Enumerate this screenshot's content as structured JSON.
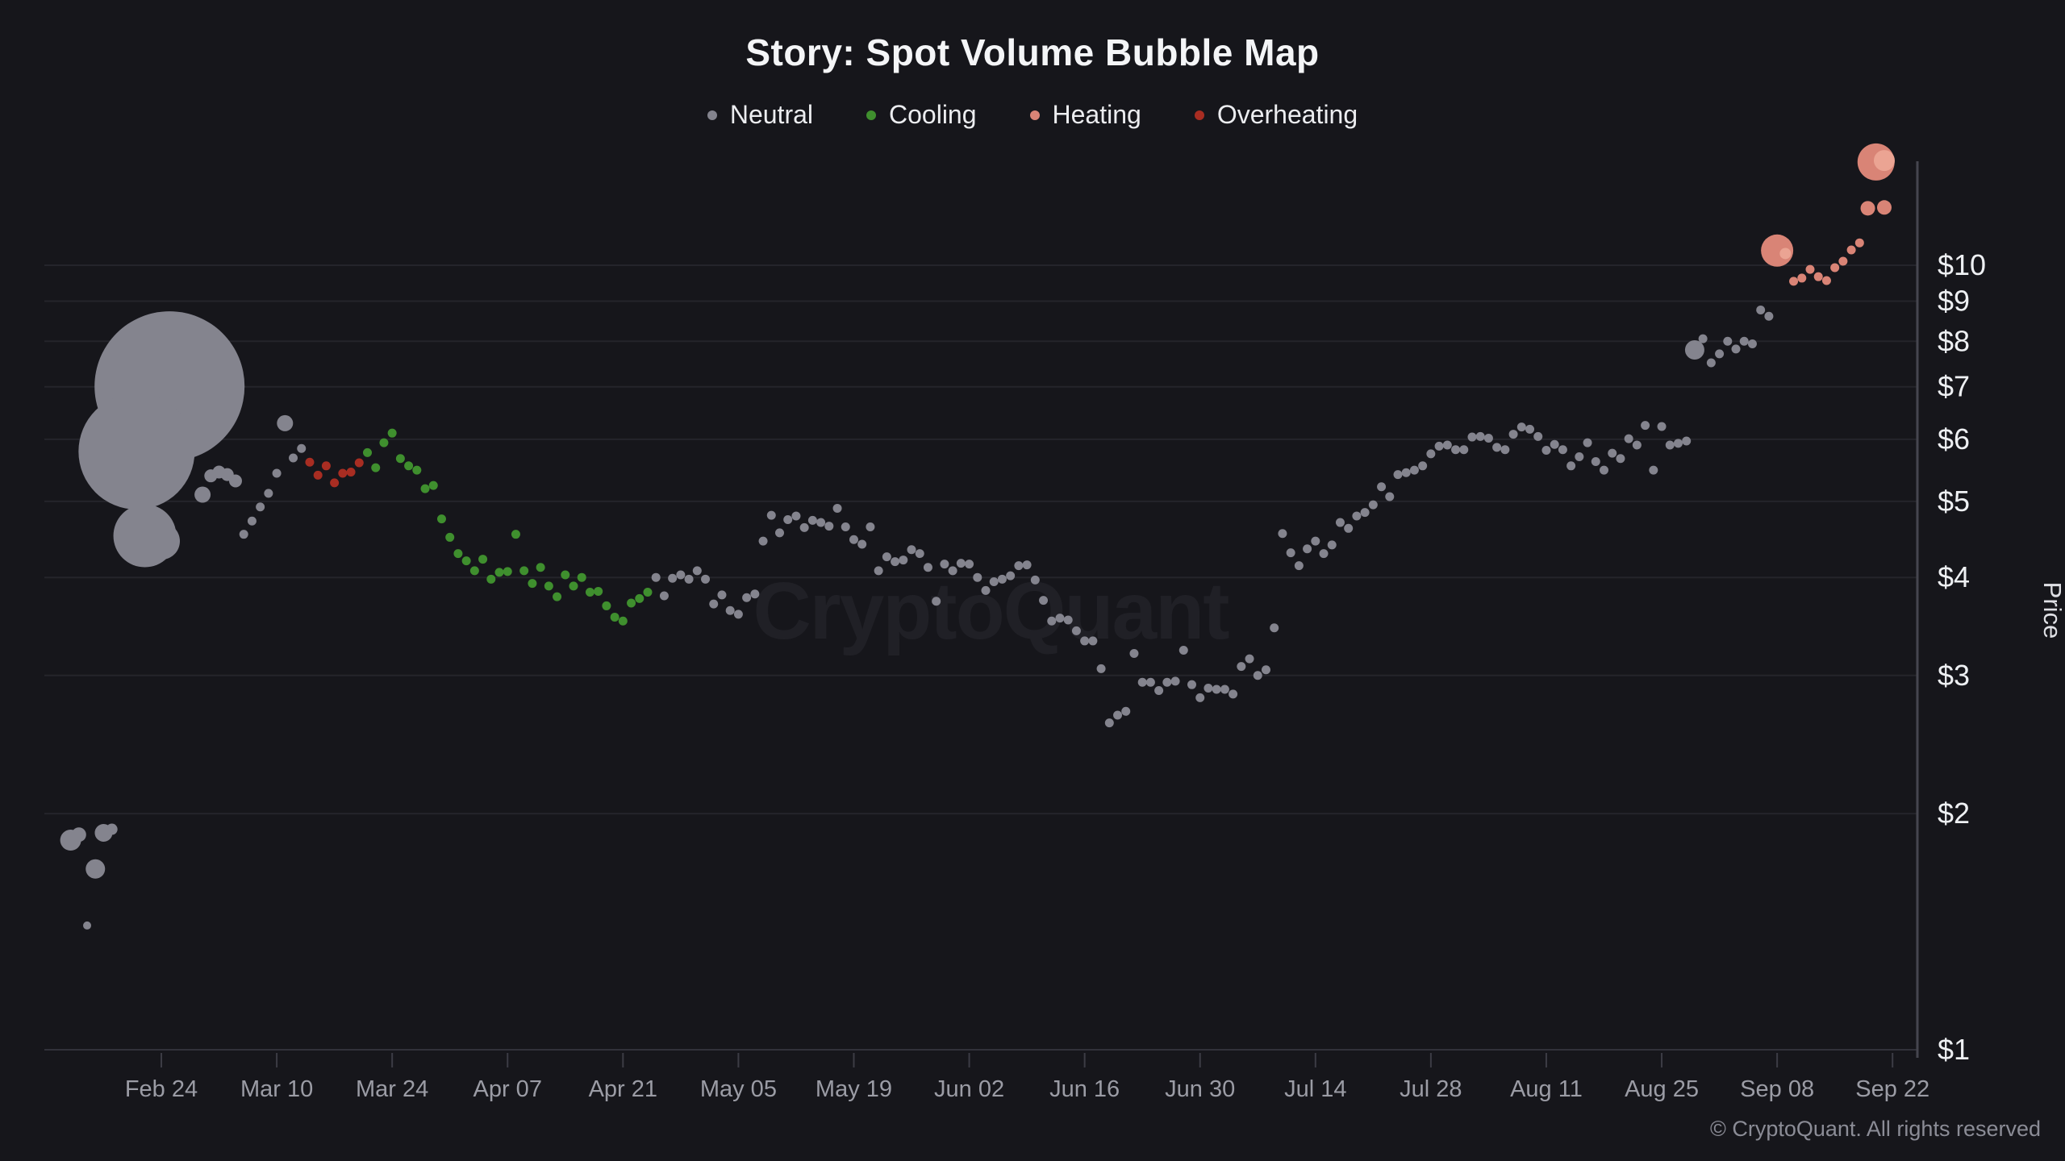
{
  "header": {
    "title": "Story: Spot Volume Bubble Map"
  },
  "legend": [
    {
      "key": "n",
      "label": "Neutral",
      "color": "#84848e"
    },
    {
      "key": "c",
      "label": "Cooling",
      "color": "#3f8f2e"
    },
    {
      "key": "h",
      "label": "Heating",
      "color": "#d98476"
    },
    {
      "key": "o",
      "label": "Overheating",
      "color": "#a82d22"
    }
  ],
  "watermark": "CryptoQuant",
  "footer": {
    "copyright": "© CryptoQuant. All rights reserved"
  },
  "chart_data": {
    "type": "scatter",
    "subtype": "bubble",
    "title": "Story: Spot Volume Bubble Map",
    "xlabel": "",
    "ylabel": "Price",
    "y_scale": "log",
    "y_axis_side": "right",
    "ylim": [
      1,
      14.5
    ],
    "grid": true,
    "legend_position": "top",
    "colors": {
      "n": "#84848e",
      "c": "#3f8f2e",
      "h": "#d98476",
      "hl": "#eba493",
      "o": "#a82d22"
    },
    "y_ticks": [
      {
        "label": "$1",
        "value": 1
      },
      {
        "label": "$2",
        "value": 2
      },
      {
        "label": "$3",
        "value": 3
      },
      {
        "label": "$4",
        "value": 4
      },
      {
        "label": "$5",
        "value": 5
      },
      {
        "label": "$6",
        "value": 6
      },
      {
        "label": "$7",
        "value": 7
      },
      {
        "label": "$8",
        "value": 8
      },
      {
        "label": "$9",
        "value": 9
      },
      {
        "label": "$10",
        "value": 10
      }
    ],
    "x_ticks": [
      {
        "label": "Feb 24"
      },
      {
        "label": "Mar 10"
      },
      {
        "label": "Mar 24"
      },
      {
        "label": "Apr 07"
      },
      {
        "label": "Apr 21"
      },
      {
        "label": "May 05"
      },
      {
        "label": "May 19"
      },
      {
        "label": "Jun 02"
      },
      {
        "label": "Jun 16"
      },
      {
        "label": "Jun 30"
      },
      {
        "label": "Jul 14"
      },
      {
        "label": "Jul 28"
      },
      {
        "label": "Aug 11"
      },
      {
        "label": "Aug 25"
      },
      {
        "label": "Sep 08"
      },
      {
        "label": "Sep 22"
      }
    ],
    "point_fields": [
      "date",
      "price_usd",
      "bubble_radius_px",
      "category"
    ],
    "category_codes": {
      "n": "Neutral",
      "c": "Cooling",
      "h": "Heating",
      "hl": "Heating (light)",
      "o": "Overheating"
    },
    "points": [
      [
        "Feb 13",
        1.85,
        13,
        "n"
      ],
      [
        "Feb 14",
        1.88,
        9,
        "n"
      ],
      [
        "Feb 15",
        1.44,
        5,
        "n"
      ],
      [
        "Feb 16",
        1.7,
        12,
        "n"
      ],
      [
        "Feb 17",
        1.89,
        11,
        "n"
      ],
      [
        "Feb 18",
        1.91,
        7,
        "n"
      ],
      [
        "Feb 21",
        5.79,
        72,
        "n"
      ],
      [
        "Feb 22",
        4.52,
        39,
        "n"
      ],
      [
        "Feb 24",
        4.45,
        23,
        "n"
      ],
      [
        "Feb 25",
        7.01,
        93,
        "n"
      ],
      [
        "Mar 01",
        5.1,
        10,
        "n"
      ],
      [
        "Mar 02",
        5.39,
        8,
        "n"
      ],
      [
        "Mar 03",
        5.45,
        8,
        "n"
      ],
      [
        "Mar 04",
        5.41,
        8,
        "n"
      ],
      [
        "Mar 05",
        5.31,
        8,
        "n"
      ],
      [
        "Mar 06",
        4.54,
        5.5,
        "n"
      ],
      [
        "Mar 07",
        4.72,
        5.5,
        "n"
      ],
      [
        "Mar 08",
        4.92,
        5.5,
        "n"
      ],
      [
        "Mar 09",
        5.12,
        5.5,
        "n"
      ],
      [
        "Mar 10",
        5.43,
        5.5,
        "n"
      ],
      [
        "Mar 11",
        6.29,
        10,
        "n"
      ],
      [
        "Mar 12",
        5.68,
        5.5,
        "n"
      ],
      [
        "Mar 13",
        5.84,
        5.5,
        "n"
      ],
      [
        "Mar 14",
        5.61,
        5.5,
        "o"
      ],
      [
        "Mar 15",
        5.4,
        5.5,
        "o"
      ],
      [
        "Mar 16",
        5.55,
        5.5,
        "o"
      ],
      [
        "Mar 17",
        5.28,
        5.5,
        "o"
      ],
      [
        "Mar 18",
        5.43,
        5.5,
        "o"
      ],
      [
        "Mar 19",
        5.45,
        5.5,
        "o"
      ],
      [
        "Mar 20",
        5.6,
        5.5,
        "o"
      ],
      [
        "Mar 21",
        5.77,
        5.5,
        "c"
      ],
      [
        "Mar 22",
        5.52,
        5.5,
        "c"
      ],
      [
        "Mar 23",
        5.94,
        5.5,
        "c"
      ],
      [
        "Mar 24",
        6.11,
        5.5,
        "c"
      ],
      [
        "Mar 25",
        5.67,
        5.5,
        "c"
      ],
      [
        "Mar 26",
        5.55,
        5.5,
        "c"
      ],
      [
        "Mar 27",
        5.48,
        5.5,
        "c"
      ],
      [
        "Mar 28",
        5.19,
        5.5,
        "c"
      ],
      [
        "Mar 29",
        5.24,
        5.5,
        "c"
      ],
      [
        "Mar 30",
        4.75,
        5.5,
        "c"
      ],
      [
        "Mar 31",
        4.5,
        5.5,
        "c"
      ],
      [
        "Apr 01",
        4.29,
        5.5,
        "c"
      ],
      [
        "Apr 02",
        4.2,
        5.5,
        "c"
      ],
      [
        "Apr 03",
        4.08,
        5.5,
        "c"
      ],
      [
        "Apr 04",
        4.22,
        5.5,
        "c"
      ],
      [
        "Apr 05",
        3.98,
        5.5,
        "c"
      ],
      [
        "Apr 06",
        4.06,
        5.5,
        "c"
      ],
      [
        "Apr 07",
        4.07,
        5.5,
        "c"
      ],
      [
        "Apr 08",
        4.54,
        5.5,
        "c"
      ],
      [
        "Apr 09",
        4.08,
        5.5,
        "c"
      ],
      [
        "Apr 10",
        3.93,
        5.5,
        "c"
      ],
      [
        "Apr 11",
        4.12,
        5.5,
        "c"
      ],
      [
        "Apr 12",
        3.9,
        5.5,
        "c"
      ],
      [
        "Apr 13",
        3.78,
        5.5,
        "c"
      ],
      [
        "Apr 14",
        4.03,
        5.5,
        "c"
      ],
      [
        "Apr 15",
        3.9,
        5.5,
        "c"
      ],
      [
        "Apr 16",
        4.0,
        5.5,
        "c"
      ],
      [
        "Apr 17",
        3.83,
        5.5,
        "c"
      ],
      [
        "Apr 18",
        3.84,
        5.5,
        "c"
      ],
      [
        "Apr 19",
        3.68,
        5.5,
        "c"
      ],
      [
        "Apr 20",
        3.56,
        5.5,
        "c"
      ],
      [
        "Apr 21",
        3.52,
        5.5,
        "c"
      ],
      [
        "Apr 22",
        3.71,
        5.5,
        "c"
      ],
      [
        "Apr 23",
        3.76,
        5.5,
        "c"
      ],
      [
        "Apr 24",
        3.83,
        5.5,
        "c"
      ],
      [
        "Apr 25",
        4.0,
        5.5,
        "n"
      ],
      [
        "Apr 26",
        3.79,
        5.5,
        "n"
      ],
      [
        "Apr 27",
        3.99,
        5.5,
        "n"
      ],
      [
        "Apr 28",
        4.03,
        5.5,
        "n"
      ],
      [
        "Apr 29",
        3.98,
        5.5,
        "n"
      ],
      [
        "Apr 30",
        4.08,
        5.5,
        "n"
      ],
      [
        "May 01",
        3.98,
        5.5,
        "n"
      ],
      [
        "May 02",
        3.7,
        5.5,
        "n"
      ],
      [
        "May 03",
        3.8,
        5.5,
        "n"
      ],
      [
        "May 04",
        3.63,
        5.5,
        "n"
      ],
      [
        "May 05",
        3.59,
        5.5,
        "n"
      ],
      [
        "May 06",
        3.77,
        5.5,
        "n"
      ],
      [
        "May 07",
        3.81,
        5.5,
        "n"
      ],
      [
        "May 08",
        4.45,
        5.5,
        "n"
      ],
      [
        "May 09",
        4.8,
        5.5,
        "n"
      ],
      [
        "May 10",
        4.56,
        5.5,
        "n"
      ],
      [
        "May 11",
        4.74,
        5.5,
        "n"
      ],
      [
        "May 12",
        4.79,
        5.5,
        "n"
      ],
      [
        "May 13",
        4.63,
        5.5,
        "n"
      ],
      [
        "May 14",
        4.73,
        5.5,
        "n"
      ],
      [
        "May 15",
        4.7,
        5.5,
        "n"
      ],
      [
        "May 16",
        4.65,
        5.5,
        "n"
      ],
      [
        "May 17",
        4.9,
        5.5,
        "n"
      ],
      [
        "May 18",
        4.64,
        5.5,
        "n"
      ],
      [
        "May 19",
        4.47,
        5.5,
        "n"
      ],
      [
        "May 20",
        4.41,
        5.5,
        "n"
      ],
      [
        "May 21",
        4.64,
        5.5,
        "n"
      ],
      [
        "May 22",
        4.08,
        5.5,
        "n"
      ],
      [
        "May 23",
        4.25,
        5.5,
        "n"
      ],
      [
        "May 24",
        4.19,
        5.5,
        "n"
      ],
      [
        "May 25",
        4.21,
        5.5,
        "n"
      ],
      [
        "May 26",
        4.34,
        5.5,
        "n"
      ],
      [
        "May 27",
        4.29,
        5.5,
        "n"
      ],
      [
        "May 28",
        4.12,
        5.5,
        "n"
      ],
      [
        "May 29",
        3.73,
        5.5,
        "n"
      ],
      [
        "May 30",
        4.16,
        5.5,
        "n"
      ],
      [
        "May 31",
        4.08,
        5.5,
        "n"
      ],
      [
        "Jun 01",
        4.17,
        5.5,
        "n"
      ],
      [
        "Jun 02",
        4.16,
        5.5,
        "n"
      ],
      [
        "Jun 03",
        4.0,
        5.5,
        "n"
      ],
      [
        "Jun 04",
        3.85,
        5.5,
        "n"
      ],
      [
        "Jun 05",
        3.95,
        5.5,
        "n"
      ],
      [
        "Jun 06",
        3.98,
        5.5,
        "n"
      ],
      [
        "Jun 07",
        4.02,
        5.5,
        "n"
      ],
      [
        "Jun 08",
        4.14,
        5.5,
        "n"
      ],
      [
        "Jun 09",
        4.15,
        5.5,
        "n"
      ],
      [
        "Jun 10",
        3.97,
        5.5,
        "n"
      ],
      [
        "Jun 11",
        3.74,
        5.5,
        "n"
      ],
      [
        "Jun 12",
        3.52,
        5.5,
        "n"
      ],
      [
        "Jun 13",
        3.55,
        5.5,
        "n"
      ],
      [
        "Jun 14",
        3.53,
        5.5,
        "n"
      ],
      [
        "Jun 15",
        3.42,
        5.5,
        "n"
      ],
      [
        "Jun 16",
        3.32,
        5.5,
        "n"
      ],
      [
        "Jun 17",
        3.32,
        5.5,
        "n"
      ],
      [
        "Jun 18",
        3.06,
        5.5,
        "n"
      ],
      [
        "Jun 19",
        2.61,
        5.5,
        "n"
      ],
      [
        "Jun 20",
        2.67,
        5.5,
        "n"
      ],
      [
        "Jun 21",
        2.7,
        5.5,
        "n"
      ],
      [
        "Jun 22",
        3.2,
        5.5,
        "n"
      ],
      [
        "Jun 23",
        2.94,
        5.5,
        "n"
      ],
      [
        "Jun 24",
        2.94,
        5.5,
        "n"
      ],
      [
        "Jun 25",
        2.87,
        5.5,
        "n"
      ],
      [
        "Jun 26",
        2.94,
        5.5,
        "n"
      ],
      [
        "Jun 27",
        2.95,
        5.5,
        "n"
      ],
      [
        "Jun 28",
        3.23,
        5.5,
        "n"
      ],
      [
        "Jun 29",
        2.92,
        5.5,
        "n"
      ],
      [
        "Jun 30",
        2.81,
        5.5,
        "n"
      ],
      [
        "Jul 01",
        2.89,
        5.5,
        "n"
      ],
      [
        "Jul 02",
        2.88,
        5.5,
        "n"
      ],
      [
        "Jul 03",
        2.88,
        5.5,
        "n"
      ],
      [
        "Jul 04",
        2.84,
        5.5,
        "n"
      ],
      [
        "Jul 05",
        3.08,
        5.5,
        "n"
      ],
      [
        "Jul 06",
        3.15,
        5.5,
        "n"
      ],
      [
        "Jul 07",
        3.0,
        5.5,
        "n"
      ],
      [
        "Jul 08",
        3.05,
        5.5,
        "n"
      ],
      [
        "Jul 09",
        3.45,
        5.5,
        "n"
      ],
      [
        "Jul 10",
        4.55,
        5.5,
        "n"
      ],
      [
        "Jul 11",
        4.3,
        5.5,
        "n"
      ],
      [
        "Jul 12",
        4.14,
        5.5,
        "n"
      ],
      [
        "Jul 13",
        4.35,
        5.5,
        "n"
      ],
      [
        "Jul 14",
        4.45,
        5.5,
        "n"
      ],
      [
        "Jul 15",
        4.29,
        5.5,
        "n"
      ],
      [
        "Jul 16",
        4.4,
        5.5,
        "n"
      ],
      [
        "Jul 17",
        4.7,
        5.5,
        "n"
      ],
      [
        "Jul 18",
        4.62,
        5.5,
        "n"
      ],
      [
        "Jul 19",
        4.79,
        5.5,
        "n"
      ],
      [
        "Jul 20",
        4.84,
        5.5,
        "n"
      ],
      [
        "Jul 21",
        4.95,
        5.5,
        "n"
      ],
      [
        "Jul 22",
        5.22,
        5.5,
        "n"
      ],
      [
        "Jul 23",
        5.07,
        5.5,
        "n"
      ],
      [
        "Jul 24",
        5.41,
        5.5,
        "n"
      ],
      [
        "Jul 25",
        5.44,
        5.5,
        "n"
      ],
      [
        "Jul 26",
        5.48,
        5.5,
        "n"
      ],
      [
        "Jul 27",
        5.55,
        5.5,
        "n"
      ],
      [
        "Jul 28",
        5.75,
        5.5,
        "n"
      ],
      [
        "Jul 29",
        5.88,
        5.5,
        "n"
      ],
      [
        "Jul 30",
        5.9,
        5.5,
        "n"
      ],
      [
        "Jul 31",
        5.82,
        5.5,
        "n"
      ],
      [
        "Aug 01",
        5.82,
        5.5,
        "n"
      ],
      [
        "Aug 02",
        6.04,
        5.5,
        "n"
      ],
      [
        "Aug 03",
        6.05,
        5.5,
        "n"
      ],
      [
        "Aug 04",
        6.02,
        5.5,
        "n"
      ],
      [
        "Aug 05",
        5.86,
        5.5,
        "n"
      ],
      [
        "Aug 06",
        5.82,
        5.5,
        "n"
      ],
      [
        "Aug 07",
        6.09,
        5.5,
        "n"
      ],
      [
        "Aug 08",
        6.22,
        5.5,
        "n"
      ],
      [
        "Aug 09",
        6.18,
        5.5,
        "n"
      ],
      [
        "Aug 10",
        6.05,
        5.5,
        "n"
      ],
      [
        "Aug 11",
        5.81,
        5.5,
        "n"
      ],
      [
        "Aug 12",
        5.91,
        5.5,
        "n"
      ],
      [
        "Aug 13",
        5.82,
        5.5,
        "n"
      ],
      [
        "Aug 14",
        5.55,
        5.5,
        "n"
      ],
      [
        "Aug 15",
        5.7,
        5.5,
        "n"
      ],
      [
        "Aug 16",
        5.94,
        5.5,
        "n"
      ],
      [
        "Aug 17",
        5.62,
        5.5,
        "n"
      ],
      [
        "Aug 18",
        5.48,
        5.5,
        "n"
      ],
      [
        "Aug 19",
        5.76,
        5.5,
        "n"
      ],
      [
        "Aug 20",
        5.67,
        5.5,
        "n"
      ],
      [
        "Aug 21",
        6.01,
        5.5,
        "n"
      ],
      [
        "Aug 22",
        5.9,
        5.5,
        "n"
      ],
      [
        "Aug 23",
        6.25,
        5.5,
        "n"
      ],
      [
        "Aug 24",
        5.48,
        5.5,
        "n"
      ],
      [
        "Aug 25",
        6.23,
        5.5,
        "n"
      ],
      [
        "Aug 26",
        5.9,
        5.5,
        "n"
      ],
      [
        "Aug 27",
        5.93,
        5.5,
        "n"
      ],
      [
        "Aug 28",
        5.97,
        5.5,
        "n"
      ],
      [
        "Aug 29",
        7.8,
        12,
        "n"
      ],
      [
        "Aug 30",
        8.06,
        5.5,
        "n"
      ],
      [
        "Aug 31",
        7.51,
        5.5,
        "n"
      ],
      [
        "Sep 01",
        7.71,
        5.5,
        "n"
      ],
      [
        "Sep 02",
        8.0,
        5.5,
        "n"
      ],
      [
        "Sep 03",
        7.82,
        5.5,
        "n"
      ],
      [
        "Sep 04",
        8.0,
        5.5,
        "n"
      ],
      [
        "Sep 05",
        7.94,
        5.5,
        "n"
      ],
      [
        "Sep 06",
        8.77,
        5.5,
        "n"
      ],
      [
        "Sep 07",
        8.61,
        5.5,
        "n"
      ],
      [
        "Sep 08",
        10.44,
        20,
        "h"
      ],
      [
        "Sep 09",
        10.35,
        7,
        "hl"
      ],
      [
        "Sep 10",
        9.54,
        5.5,
        "h"
      ],
      [
        "Sep 11",
        9.63,
        5.5,
        "h"
      ],
      [
        "Sep 12",
        9.88,
        5.5,
        "h"
      ],
      [
        "Sep 13",
        9.67,
        5.5,
        "h"
      ],
      [
        "Sep 14",
        9.56,
        5.5,
        "h"
      ],
      [
        "Sep 15",
        9.93,
        5.5,
        "h"
      ],
      [
        "Sep 16",
        10.12,
        5.5,
        "h"
      ],
      [
        "Sep 17",
        10.46,
        5.5,
        "h"
      ],
      [
        "Sep 18",
        10.68,
        5.5,
        "h"
      ],
      [
        "Sep 19",
        11.82,
        9,
        "h"
      ],
      [
        "Sep 20",
        13.54,
        23,
        "h"
      ],
      [
        "Sep 21",
        13.6,
        13,
        "hl"
      ],
      [
        "Sep 21",
        11.85,
        9,
        "h"
      ]
    ]
  }
}
